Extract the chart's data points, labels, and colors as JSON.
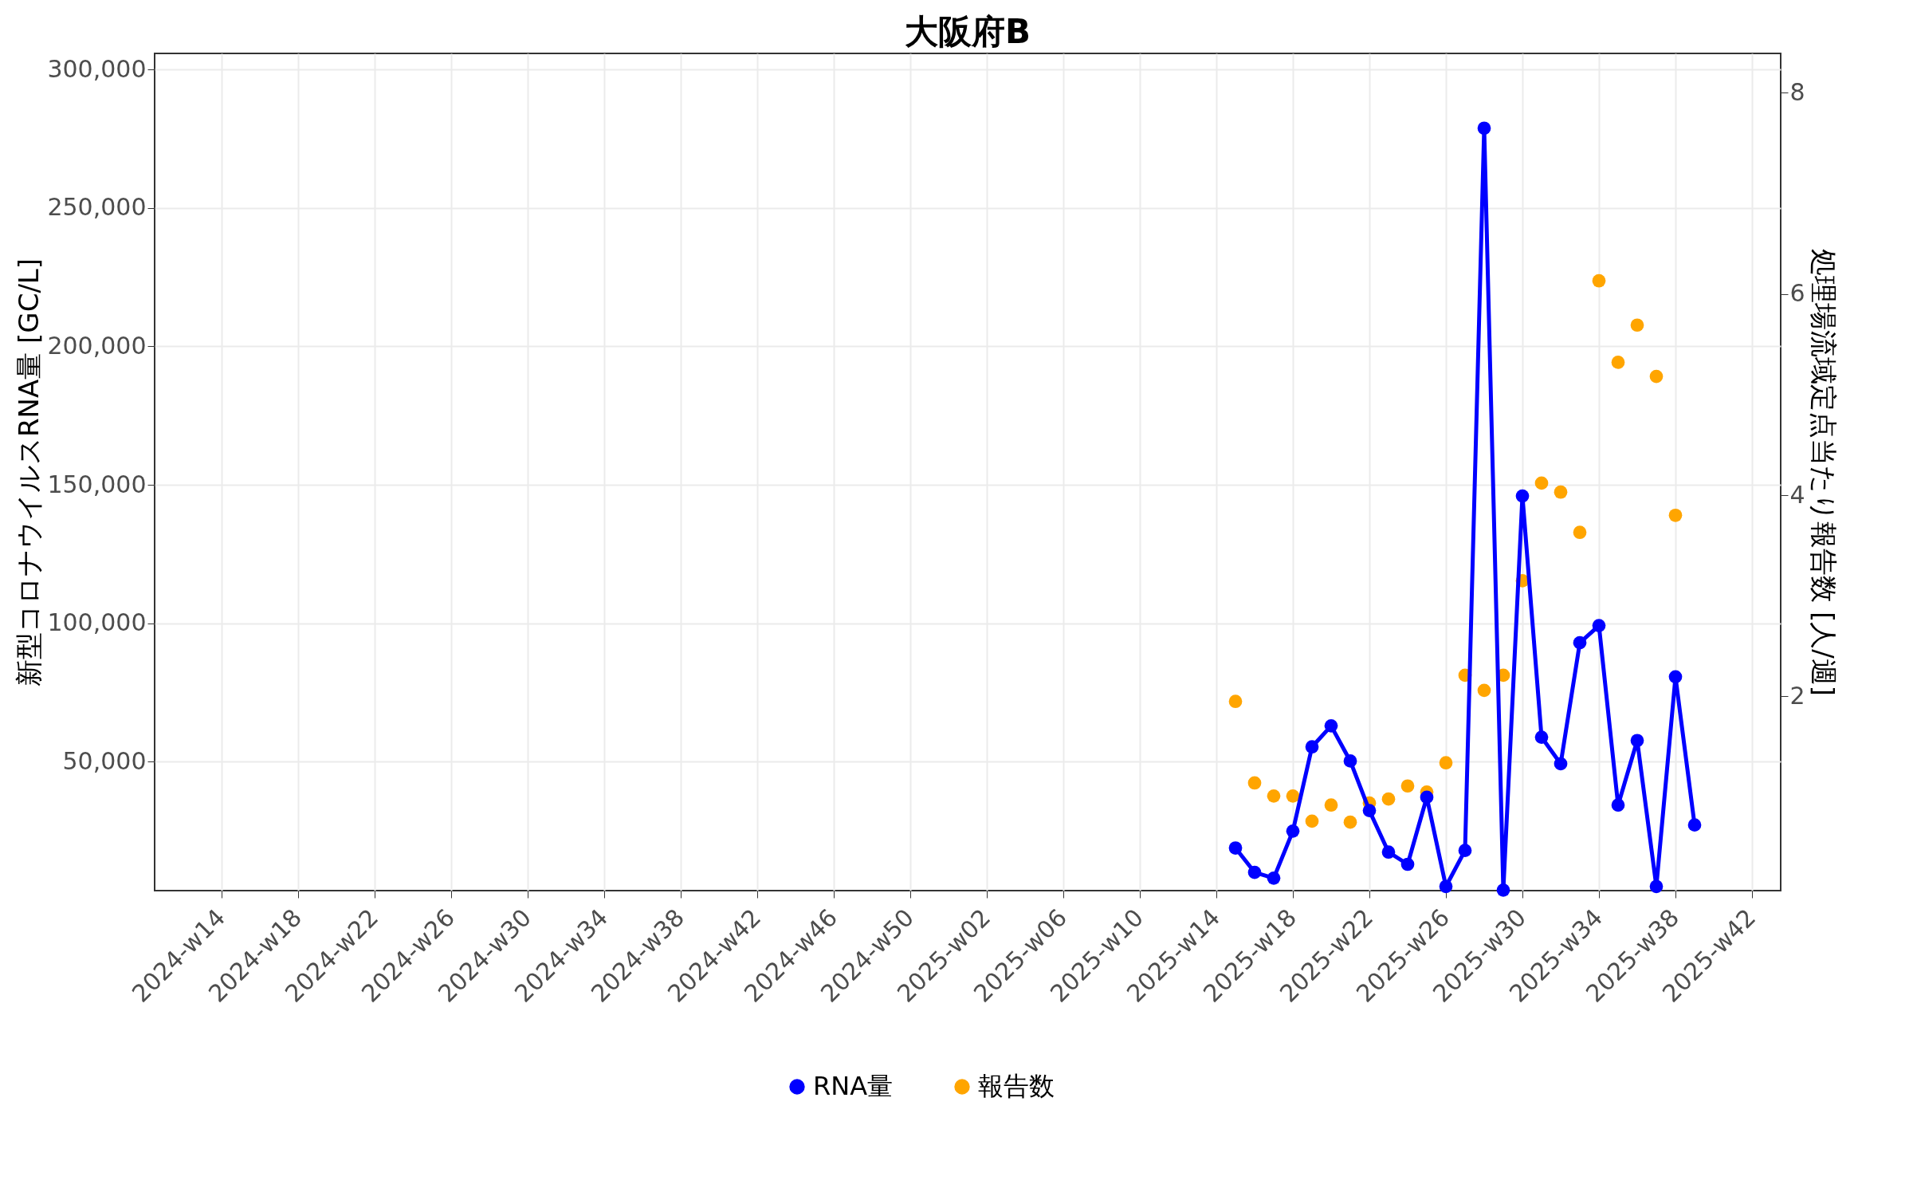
{
  "chart_data": {
    "type": "line",
    "title": "大阪府B",
    "ylabel": "新型コロナウイルスRNA量 [GC/L]",
    "y2label": "処理場流域定点当たり報告数 [人/週]",
    "categories": [
      null,
      null,
      null,
      "2024-w14",
      null,
      null,
      null,
      "2024-w18",
      null,
      null,
      null,
      "2024-w22",
      null,
      null,
      null,
      "2024-w26",
      null,
      null,
      null,
      "2024-w30",
      null,
      null,
      null,
      "2024-w34",
      null,
      null,
      null,
      "2024-w38",
      null,
      null,
      null,
      "2024-w42",
      null,
      null,
      null,
      "2024-w46",
      null,
      null,
      null,
      "2024-w50",
      null,
      null,
      null,
      "2025-w02",
      null,
      null,
      null,
      "2025-w06",
      null,
      null,
      null,
      "2025-w10",
      null,
      null,
      null,
      "2025-w14",
      null,
      null,
      null,
      "2025-w18",
      null,
      null,
      null,
      "2025-w22",
      null,
      null,
      null,
      "2025-w26",
      null,
      null,
      null,
      "2025-w30",
      null,
      null,
      null,
      "2025-w34",
      null,
      null,
      null,
      "2025-w38",
      null,
      null,
      null,
      "2025-w42",
      null
    ],
    "ylim": [
      3500,
      305800
    ],
    "yticks": [
      {
        "value": 50000,
        "label": "50,000"
      },
      {
        "value": 100000,
        "label": "100,000"
      },
      {
        "value": 150000,
        "label": "150,000"
      },
      {
        "value": 200000,
        "label": "200,000"
      },
      {
        "value": 250000,
        "label": "250,000"
      },
      {
        "value": 300000,
        "label": "300,000"
      }
    ],
    "y2lim": [
      0.07,
      8.39
    ],
    "y2ticks": [
      2,
      4,
      6,
      8
    ],
    "grid": true,
    "legend": "bottom",
    "series": [
      {
        "name": "RNA量",
        "color": "#0000ff",
        "marker": "circle",
        "values": [
          null,
          null,
          null,
          null,
          null,
          null,
          null,
          null,
          null,
          null,
          null,
          null,
          null,
          null,
          null,
          null,
          null,
          null,
          null,
          null,
          null,
          null,
          null,
          null,
          null,
          null,
          null,
          null,
          null,
          null,
          null,
          null,
          null,
          null,
          null,
          null,
          null,
          null,
          null,
          null,
          null,
          null,
          null,
          null,
          null,
          null,
          null,
          null,
          null,
          null,
          null,
          null,
          null,
          null,
          null,
          null,
          18900,
          10100,
          8000,
          25000,
          55400,
          63000,
          50300,
          32400,
          17400,
          13000,
          37200,
          5000,
          18000,
          278800,
          3700,
          146000,
          58900,
          49300,
          93000,
          99200,
          34400,
          57700,
          5000,
          80700,
          27200,
          null,
          null,
          null,
          null
        ]
      },
      {
        "name": "報告数",
        "color": "#ffa500",
        "type": "scatter",
        "axis": "y2",
        "values": [
          null,
          null,
          null,
          null,
          null,
          null,
          null,
          null,
          null,
          null,
          null,
          null,
          null,
          null,
          null,
          null,
          null,
          null,
          null,
          null,
          null,
          null,
          null,
          null,
          null,
          null,
          null,
          null,
          null,
          null,
          null,
          null,
          null,
          null,
          null,
          null,
          null,
          null,
          null,
          null,
          null,
          null,
          null,
          null,
          null,
          null,
          null,
          null,
          null,
          null,
          null,
          null,
          null,
          null,
          null,
          null,
          1.95,
          1.14,
          1.01,
          1.01,
          0.76,
          0.92,
          0.75,
          0.94,
          0.98,
          1.11,
          1.05,
          1.34,
          2.21,
          2.06,
          2.21,
          3.15,
          4.12,
          4.03,
          3.63,
          6.13,
          5.32,
          5.69,
          5.18,
          3.8,
          null,
          null,
          null,
          null,
          null
        ]
      }
    ]
  }
}
